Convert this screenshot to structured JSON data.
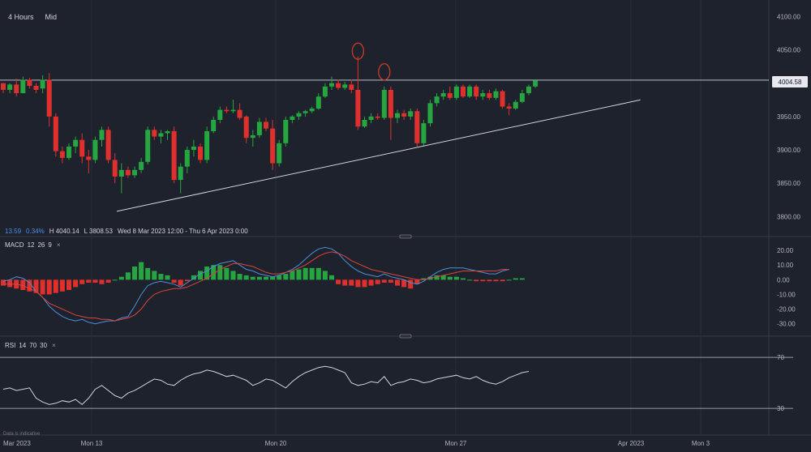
{
  "toolbar": {
    "timeframe": "4 Hours",
    "price_type": "Mid"
  },
  "info_bar": {
    "change": "13.59",
    "change_pct": "0.34%",
    "high": "H 4040.14",
    "low": "L 3808.53",
    "range": "Wed 8 Mar 2023 12:00 - Thu 6 Apr 2023 0:00"
  },
  "last_price_label": "4004.58",
  "macd_label": {
    "name": "MACD",
    "fast": "12",
    "slow": "26",
    "signal": "9"
  },
  "rsi_label": {
    "name": "RSI",
    "period": "14",
    "upper": "70",
    "lower": "30"
  },
  "disclaimer": "Data is indicative",
  "colors": {
    "up": "#26a640",
    "down": "#e0302e",
    "macd_line": "#4a90d9",
    "signal_line": "#d9453c",
    "background": "#1e222d"
  },
  "icons": {
    "close": "×",
    "pane_handle": "drag-handle-icon"
  },
  "chart_data": [
    {
      "type": "candlestick",
      "y_ticks": [
        "4100.00",
        "4050.00",
        "4000.00",
        "3950.00",
        "3900.00",
        "3850.00",
        "3800.00"
      ],
      "ylim": [
        3775,
        4115
      ],
      "x_ticks": [
        "Mar 2023",
        "Mon 13",
        "Mon 20",
        "Mon 27",
        "Apr 2023",
        "Mon 3"
      ],
      "resistance_level": 4004.58,
      "trendline": [
        [
          0,
          3808
        ],
        [
          97,
          3975
        ]
      ],
      "markers": [
        {
          "index": 54,
          "price": 4048
        },
        {
          "index": 58,
          "price": 4017
        }
      ],
      "candles": [
        [
          4000,
          4000,
          3985,
          3990
        ],
        [
          3990,
          4000,
          3985,
          3998
        ],
        [
          3998,
          4007,
          3980,
          3985
        ],
        [
          3985,
          4010,
          3985,
          4005
        ],
        [
          4005,
          4008,
          3992,
          3996
        ],
        [
          3996,
          4000,
          3985,
          3990
        ],
        [
          3992,
          4012,
          3985,
          4005
        ],
        [
          4005,
          4015,
          3935,
          3950
        ],
        [
          3950,
          3955,
          3890,
          3898
        ],
        [
          3898,
          3905,
          3880,
          3888
        ],
        [
          3888,
          3910,
          3885,
          3905
        ],
        [
          3905,
          3920,
          3895,
          3915
        ],
        [
          3915,
          3925,
          3880,
          3890
        ],
        [
          3890,
          3900,
          3865,
          3885
        ],
        [
          3885,
          3920,
          3880,
          3915
        ],
        [
          3915,
          3935,
          3905,
          3930
        ],
        [
          3930,
          3935,
          3880,
          3885
        ],
        [
          3885,
          3895,
          3850,
          3860
        ],
        [
          3860,
          3880,
          3835,
          3870
        ],
        [
          3870,
          3875,
          3858,
          3862
        ],
        [
          3862,
          3875,
          3858,
          3870
        ],
        [
          3870,
          3888,
          3865,
          3882
        ],
        [
          3882,
          3935,
          3878,
          3930
        ],
        [
          3930,
          3935,
          3915,
          3920
        ],
        [
          3920,
          3930,
          3910,
          3925
        ],
        [
          3925,
          3930,
          3915,
          3928
        ],
        [
          3928,
          3935,
          3850,
          3855
        ],
        [
          3855,
          3880,
          3835,
          3875
        ],
        [
          3875,
          3905,
          3865,
          3900
        ],
        [
          3900,
          3915,
          3890,
          3905
        ],
        [
          3905,
          3910,
          3880,
          3885
        ],
        [
          3885,
          3935,
          3880,
          3928
        ],
        [
          3928,
          3950,
          3925,
          3945
        ],
        [
          3945,
          3965,
          3940,
          3960
        ],
        [
          3960,
          3965,
          3955,
          3958
        ],
        [
          3958,
          3975,
          3955,
          3960
        ],
        [
          3960,
          3970,
          3945,
          3948
        ],
        [
          3950,
          3952,
          3910,
          3918
        ],
        [
          3918,
          3930,
          3905,
          3922
        ],
        [
          3922,
          3948,
          3918,
          3942
        ],
        [
          3942,
          3948,
          3928,
          3932
        ],
        [
          3932,
          3945,
          3870,
          3880
        ],
        [
          3880,
          3915,
          3875,
          3910
        ],
        [
          3910,
          3950,
          3905,
          3945
        ],
        [
          3945,
          3952,
          3940,
          3950
        ],
        [
          3950,
          3958,
          3945,
          3955
        ],
        [
          3955,
          3960,
          3950,
          3958
        ],
        [
          3958,
          3965,
          3955,
          3962
        ],
        [
          3962,
          3985,
          3960,
          3980
        ],
        [
          3980,
          4000,
          3978,
          3995
        ],
        [
          3995,
          4010,
          3990,
          4000
        ],
        [
          4000,
          4005,
          3990,
          3993
        ],
        [
          3993,
          4002,
          3990,
          3998
        ],
        [
          3998,
          4005,
          3985,
          3990
        ],
        [
          3990,
          4040,
          3930,
          3935
        ],
        [
          3935,
          3950,
          3933,
          3945
        ],
        [
          3945,
          3955,
          3940,
          3950
        ],
        [
          3950,
          3955,
          3945,
          3948
        ],
        [
          3948,
          3995,
          3945,
          3990
        ],
        [
          3990,
          3995,
          3915,
          3948
        ],
        [
          3948,
          3960,
          3940,
          3955
        ],
        [
          3955,
          3960,
          3945,
          3950
        ],
        [
          3950,
          3962,
          3945,
          3958
        ],
        [
          3958,
          3962,
          3905,
          3910
        ],
        [
          3910,
          3945,
          3905,
          3940
        ],
        [
          3940,
          3975,
          3935,
          3970
        ],
        [
          3970,
          3985,
          3965,
          3980
        ],
        [
          3980,
          3990,
          3975,
          3985
        ],
        [
          3985,
          3995,
          3975,
          3978
        ],
        [
          3978,
          3998,
          3975,
          3995
        ],
        [
          3995,
          3998,
          3978,
          3980
        ],
        [
          3980,
          3998,
          3978,
          3995
        ],
        [
          3995,
          3998,
          3975,
          3980
        ],
        [
          3980,
          3990,
          3975,
          3985
        ],
        [
          3985,
          3990,
          3975,
          3978
        ],
        [
          3978,
          3992,
          3975,
          3988
        ],
        [
          3988,
          3990,
          3962,
          3965
        ],
        [
          3965,
          3970,
          3952,
          3962
        ],
        [
          3962,
          3975,
          3960,
          3972
        ],
        [
          3972,
          3990,
          3970,
          3985
        ],
        [
          3985,
          3998,
          3982,
          3995
        ],
        [
          3995,
          4006,
          3993,
          4004
        ]
      ]
    },
    {
      "type": "macd",
      "y_ticks": [
        "20.00",
        "10.00",
        "0.00",
        "-10.00",
        "-20.00",
        "-30.00"
      ],
      "ylim": [
        -34,
        25
      ],
      "macd": [
        -1,
        0,
        2,
        1,
        -2,
        -8,
        -12,
        -18,
        -22,
        -25,
        -27,
        -28,
        -27,
        -29,
        -30,
        -29,
        -28,
        -28,
        -26,
        -25,
        -18,
        -10,
        -4,
        -2,
        -1,
        -2,
        -3,
        -5,
        -2,
        1,
        4,
        6,
        9,
        11,
        12,
        13,
        10,
        7,
        6,
        4,
        3,
        2,
        3,
        5,
        7,
        10,
        14,
        18,
        21,
        22,
        21,
        18,
        13,
        9,
        6,
        4,
        3,
        2,
        4,
        2,
        1,
        0,
        -2,
        -3,
        -1,
        2,
        5,
        7,
        8,
        8,
        8,
        7,
        6,
        5,
        4,
        4,
        6,
        7
      ],
      "signal": [
        -3,
        -3,
        -3,
        -4,
        -6,
        -8,
        -12,
        -16,
        -18,
        -20,
        -22,
        -24,
        -25,
        -26,
        -26,
        -27,
        -27,
        -28,
        -27,
        -26,
        -24,
        -20,
        -14,
        -10,
        -8,
        -7,
        -6,
        -6,
        -5,
        -3,
        -1,
        1,
        4,
        7,
        9,
        11,
        11,
        10,
        9,
        7,
        5,
        4,
        4,
        5,
        6,
        8,
        10,
        13,
        16,
        18,
        19,
        18,
        16,
        13,
        11,
        9,
        7,
        6,
        5,
        4,
        3,
        2,
        1,
        0,
        0,
        1,
        2,
        3,
        4,
        5,
        6,
        6,
        6,
        6,
        6,
        6,
        7,
        7
      ],
      "histogram": [
        -4,
        -5,
        -6,
        -7,
        -8,
        -9,
        -10,
        -10,
        -9,
        -8,
        -7,
        -5,
        -3,
        -2,
        -2,
        -3,
        -2,
        0,
        2,
        5,
        9,
        12,
        8,
        6,
        4,
        3,
        -2,
        -4,
        -1,
        3,
        6,
        9,
        10,
        10,
        8,
        6,
        4,
        3,
        2,
        2,
        2,
        2,
        3,
        4,
        6,
        7,
        8,
        8,
        8,
        6,
        3,
        -3,
        -4,
        -4,
        -5,
        -5,
        -4,
        -3,
        -2,
        -2,
        -4,
        -5,
        -6,
        -3,
        1,
        2,
        3,
        3,
        2,
        2,
        1,
        0,
        -1,
        -1,
        -1,
        -1,
        -1,
        0,
        1,
        1
      ]
    },
    {
      "type": "rsi",
      "y_ticks": [
        "70",
        "30"
      ],
      "ylim": [
        25,
        72
      ],
      "values": [
        45,
        46,
        44,
        45,
        46,
        38,
        35,
        33,
        34,
        36,
        35,
        37,
        33,
        38,
        45,
        48,
        44,
        40,
        38,
        42,
        44,
        47,
        50,
        53,
        52,
        49,
        48,
        52,
        55,
        57,
        58,
        60,
        59,
        57,
        55,
        56,
        54,
        52,
        48,
        50,
        53,
        52,
        49,
        46,
        51,
        55,
        58,
        60,
        62,
        63,
        62,
        60,
        58,
        50,
        48,
        49,
        51,
        50,
        55,
        48,
        50,
        51,
        53,
        52,
        50,
        51,
        53,
        54,
        55,
        56,
        54,
        53,
        55,
        52,
        50,
        49,
        51,
        54,
        56,
        58,
        59
      ]
    }
  ]
}
